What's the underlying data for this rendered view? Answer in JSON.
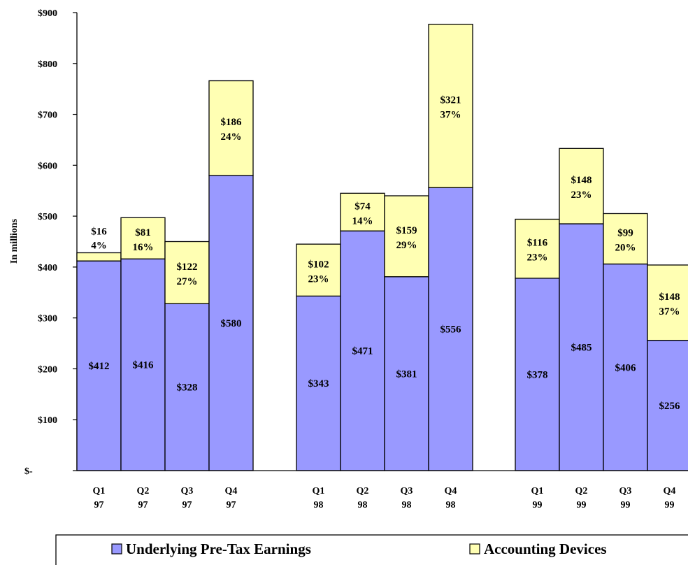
{
  "chart_data": {
    "type": "bar",
    "stacked": true,
    "ylabel": "In millions",
    "ylim": [
      0,
      900
    ],
    "y_tick_labels": [
      "$-",
      "$100",
      "$200",
      "$300",
      "$400",
      "$500",
      "$600",
      "$700",
      "$800",
      "$900"
    ],
    "groups": [
      {
        "year": "97",
        "bars": [
          {
            "q": "Q1",
            "yr": "97",
            "base": 412,
            "top": 16,
            "base_label": "$412",
            "top_label": "$16",
            "pct": "4%"
          },
          {
            "q": "Q2",
            "yr": "97",
            "base": 416,
            "top": 81,
            "base_label": "$416",
            "top_label": "$81",
            "pct": "16%"
          },
          {
            "q": "Q3",
            "yr": "97",
            "base": 328,
            "top": 122,
            "base_label": "$328",
            "top_label": "$122",
            "pct": "27%"
          },
          {
            "q": "Q4",
            "yr": "97",
            "base": 580,
            "top": 186,
            "base_label": "$580",
            "top_label": "$186",
            "pct": "24%"
          }
        ]
      },
      {
        "year": "98",
        "bars": [
          {
            "q": "Q1",
            "yr": "98",
            "base": 343,
            "top": 102,
            "base_label": "$343",
            "top_label": "$102",
            "pct": "23%"
          },
          {
            "q": "Q2",
            "yr": "98",
            "base": 471,
            "top": 74,
            "base_label": "$471",
            "top_label": "$74",
            "pct": "14%"
          },
          {
            "q": "Q3",
            "yr": "98",
            "base": 381,
            "top": 159,
            "base_label": "$381",
            "top_label": "$159",
            "pct": "29%"
          },
          {
            "q": "Q4",
            "yr": "98",
            "base": 556,
            "top": 321,
            "base_label": "$556",
            "top_label": "$321",
            "pct": "37%"
          }
        ]
      },
      {
        "year": "99",
        "bars": [
          {
            "q": "Q1",
            "yr": "99",
            "base": 378,
            "top": 116,
            "base_label": "$378",
            "top_label": "$116",
            "pct": "23%"
          },
          {
            "q": "Q2",
            "yr": "99",
            "base": 485,
            "top": 148,
            "base_label": "$485",
            "top_label": "$148",
            "pct": "23%"
          },
          {
            "q": "Q3",
            "yr": "99",
            "base": 406,
            "top": 99,
            "base_label": "$406",
            "top_label": "$99",
            "pct": "20%"
          },
          {
            "q": "Q4",
            "yr": "99",
            "base": 256,
            "top": 148,
            "base_label": "$256",
            "top_label": "$148",
            "pct": "37%"
          }
        ]
      }
    ],
    "series": [
      {
        "name": "Underlying Pre-Tax Earnings",
        "color": "#9999ff"
      },
      {
        "name": "Accounting Devices",
        "color": "#ffffb3"
      }
    ],
    "legend_position": "bottom",
    "grid": false
  }
}
